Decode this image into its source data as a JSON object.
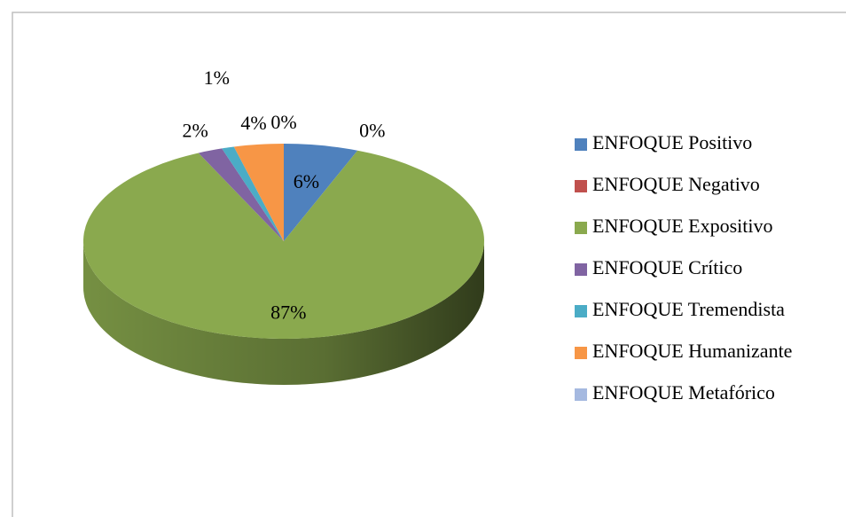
{
  "chart_data": {
    "type": "pie",
    "categories": [
      "ENFOQUE Positivo",
      "ENFOQUE Negativo",
      "ENFOQUE Expositivo",
      "ENFOQUE Crítico",
      "ENFOQUE Tremendista",
      "ENFOQUE Humanizante",
      "ENFOQUE Metafórico"
    ],
    "values": [
      6,
      0,
      87,
      2,
      1,
      4,
      0
    ],
    "value_labels": [
      "6%",
      "0%",
      "87%",
      "2%",
      "1%",
      "4%",
      "0%"
    ],
    "colors": [
      "#4f81bd",
      "#c0504d",
      "#8aa94e",
      "#8064a2",
      "#4bacc6",
      "#f79646",
      "#a5b9e0"
    ],
    "legend": "right"
  }
}
